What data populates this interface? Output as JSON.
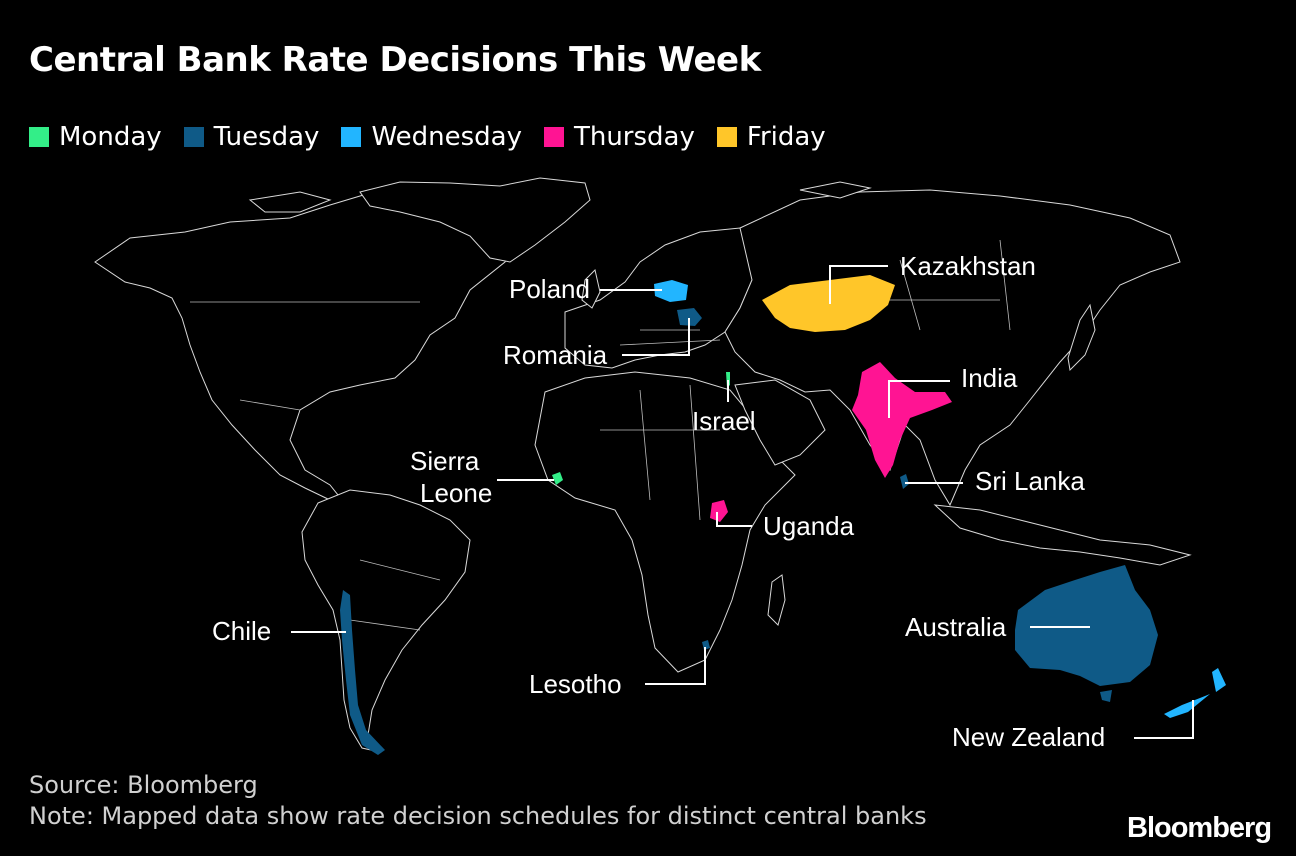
{
  "title": "Central Bank Rate Decisions This Week",
  "legend": [
    {
      "label": "Monday",
      "color": "#33ee88"
    },
    {
      "label": "Tuesday",
      "color": "#0f5a87"
    },
    {
      "label": "Wednesday",
      "color": "#22b5ff"
    },
    {
      "label": "Thursday",
      "color": "#ff1493"
    },
    {
      "label": "Friday",
      "color": "#ffc629"
    }
  ],
  "labels": {
    "kazakhstan": "Kazakhstan",
    "poland": "Poland",
    "romania": "Romania",
    "india": "India",
    "israel": "Israel",
    "sierra_leone_1": "Sierra",
    "sierra_leone_2": "Leone",
    "sri_lanka": "Sri Lanka",
    "uganda": "Uganda",
    "chile": "Chile",
    "australia": "Australia",
    "lesotho": "Lesotho",
    "new_zealand": "New Zealand"
  },
  "source": "Source: Bloomberg",
  "note": "Note: Mapped data show rate decision schedules for distinct central banks",
  "brand": "Bloomberg"
}
